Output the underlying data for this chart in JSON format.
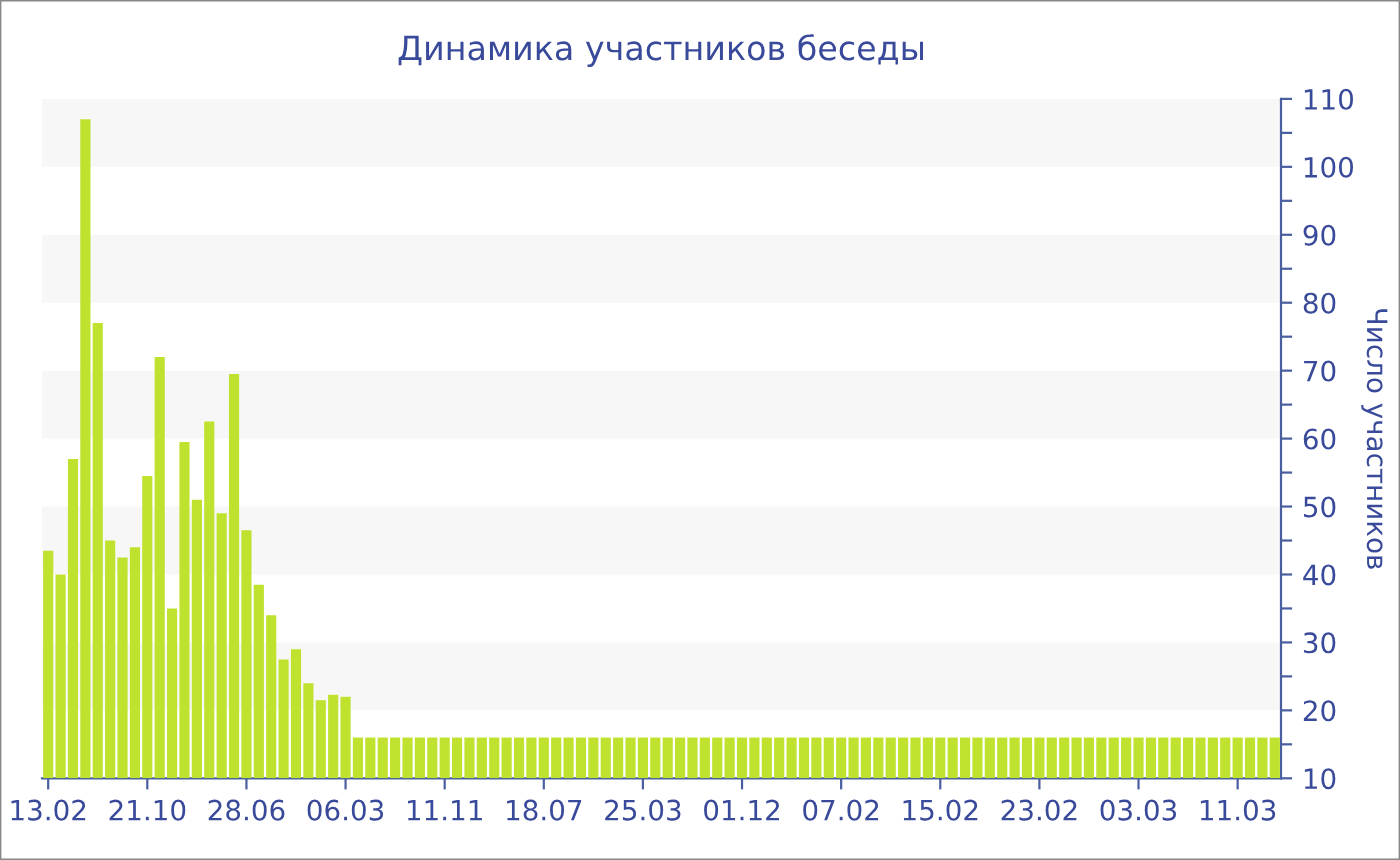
{
  "chart_data": {
    "type": "bar",
    "title": "Динамика участников беседы",
    "ylabel": "Число участников",
    "categories": [
      "13.02",
      null,
      null,
      null,
      null,
      null,
      null,
      null,
      "21.10",
      null,
      null,
      null,
      null,
      null,
      null,
      null,
      "28.06",
      null,
      null,
      null,
      null,
      null,
      null,
      null,
      "06.03",
      null,
      null,
      null,
      null,
      null,
      null,
      null,
      "11.11",
      null,
      null,
      null,
      null,
      null,
      null,
      null,
      "18.07",
      null,
      null,
      null,
      null,
      null,
      null,
      null,
      "25.03",
      null,
      null,
      null,
      null,
      null,
      null,
      null,
      "01.12",
      null,
      null,
      null,
      null,
      null,
      null,
      null,
      "07.02",
      null,
      null,
      null,
      null,
      null,
      null,
      null,
      "15.02",
      null,
      null,
      null,
      null,
      null,
      null,
      null,
      "23.02",
      null,
      null,
      null,
      null,
      null,
      null,
      null,
      "03.03",
      null,
      null,
      null,
      null,
      null,
      null,
      null,
      "11.03",
      null,
      null,
      null
    ],
    "values": [
      43.5,
      40,
      57,
      107,
      77,
      45,
      42.5,
      44,
      54.5,
      72,
      35,
      59.5,
      51,
      62.5,
      49,
      69.5,
      46.5,
      38.5,
      34,
      27.5,
      29,
      24,
      21.5,
      22.3,
      22,
      16,
      16,
      16,
      16,
      16,
      16,
      16,
      16,
      16,
      16,
      16,
      16,
      16,
      16,
      16,
      16,
      16,
      16,
      16,
      16,
      16,
      16,
      16,
      16,
      16,
      16,
      16,
      16,
      16,
      16,
      16,
      16,
      16,
      16,
      16,
      16,
      16,
      16,
      16,
      16,
      16,
      16,
      16,
      16,
      16,
      16,
      16,
      16,
      16,
      16,
      16,
      16,
      16,
      16,
      16,
      16,
      16,
      16,
      16,
      16,
      16,
      16,
      16,
      16,
      16,
      16,
      16,
      16,
      16,
      16,
      16,
      16,
      16,
      16,
      16
    ],
    "color": "#bfe22f",
    "ylim": [
      10,
      110
    ],
    "yticks": [
      10,
      {
        "value": 15,
        "label": null
      },
      20,
      {
        "value": 25,
        "label": null
      },
      30,
      {
        "value": 35,
        "label": null
      },
      40,
      {
        "value": 45,
        "label": null
      },
      50,
      {
        "value": 55,
        "label": null
      },
      60,
      {
        "value": 65,
        "label": null
      },
      70,
      {
        "value": 75,
        "label": null
      },
      80,
      {
        "value": 85,
        "label": null
      },
      90,
      {
        "value": 95,
        "label": null
      },
      100,
      {
        "value": 105,
        "label": null
      },
      110
    ],
    "bands": [
      {
        "axis": "y",
        "from": 20,
        "to": 30,
        "color": "#f7f7f7"
      },
      {
        "axis": "y",
        "from": 40,
        "to": 50,
        "color": "#f7f7f7"
      },
      {
        "axis": "y",
        "from": 60,
        "to": 70,
        "color": "#f7f7f7"
      },
      {
        "axis": "y",
        "from": 80,
        "to": 90,
        "color": "#f7f7f7"
      },
      {
        "axis": "y",
        "from": 100,
        "to": 110,
        "color": "#f7f7f7"
      }
    ],
    "legend": false
  }
}
